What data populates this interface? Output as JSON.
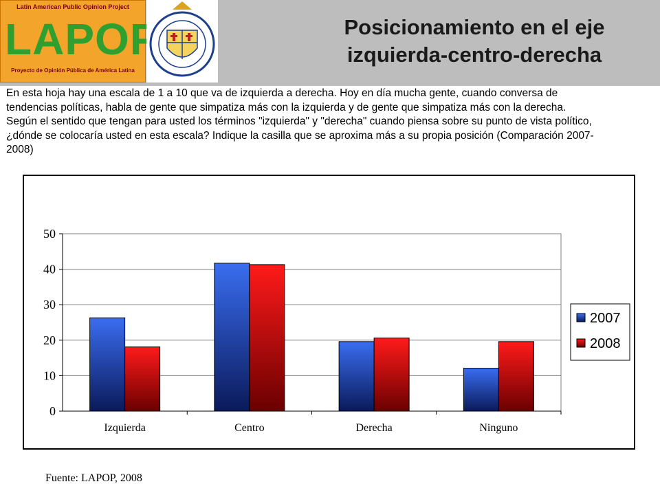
{
  "header": {
    "logo_lapop": {
      "top_text": "Latin American Public Opinion Project",
      "name": "LAPOP",
      "bottom_text": "Proyecto de Opinión Pública de América Latina"
    },
    "logo_seal": {
      "ring_text": "PONTIFICIA UNIVERSIDAD CATOLICA DE CHILE"
    },
    "title_line1": "Posicionamiento en el eje",
    "title_line2": "izquierda-centro-derecha"
  },
  "question": "En esta hoja hay una escala de 1 a 10 que va de izquierda a derecha. Hoy en día mucha gente, cuando conversa de tendencias políticas, habla de gente que simpatiza más con la  izquierda y de gente que simpatiza más con la derecha. Según el sentido que tengan para usted los términos \"izquierda\" y \"derecha\"  cuando piensa sobre su punto de vista político, ¿dónde se colocaría usted en esta escala? Indique la casilla que se aproxima más a su propia posición (Comparación 2007-2008)",
  "chart_data": {
    "type": "bar",
    "categories": [
      "Izquierda",
      "Centro",
      "Derecha",
      "Ninguno"
    ],
    "series": [
      {
        "name": "2007",
        "values": [
          26.3,
          41.7,
          19.6,
          12.1
        ],
        "color": "#2e5fe0"
      },
      {
        "name": "2008",
        "values": [
          18.1,
          41.3,
          20.6,
          19.6
        ],
        "color": "#e01010"
      }
    ],
    "ylim": [
      0,
      50
    ],
    "yticks": [
      0,
      10,
      20,
      30,
      40,
      50
    ],
    "grid": true,
    "legend": "right"
  },
  "source": "Fuente: LAPOP, 2008"
}
